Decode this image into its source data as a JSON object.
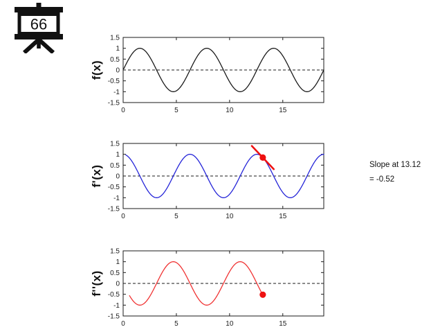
{
  "icon": {
    "label": "66"
  },
  "annotation": {
    "line1": "Slope at 13.12",
    "line2": "= -0.52"
  },
  "style": {
    "background": "#ffffff",
    "axis_color": "#1a1a1a",
    "tick_label_color": "#1a1a1a",
    "zero_line_color": "#1a1a1a",
    "curve_black": "#1a1a1a",
    "curve_blue": "#2424d8",
    "curve_red": "#f03232",
    "marker_red": "#ee1111"
  },
  "chart_data": [
    {
      "type": "line",
      "ylabel": "f(x)",
      "xlabel": "",
      "xlim": [
        0,
        18.85
      ],
      "ylim": [
        -1.5,
        1.5
      ],
      "x_ticks": [
        0,
        5,
        10,
        15
      ],
      "y_ticks": [
        1.5,
        1,
        0.5,
        0,
        -0.5,
        -1,
        -1.5
      ],
      "grid": false,
      "zero_line_dashed": true,
      "series": [
        {
          "name": "f",
          "expression": "sin(x)",
          "fn": "sin",
          "domain": [
            0.05,
            18.85
          ],
          "color": "#1a1a1a",
          "width": 1.3
        }
      ]
    },
    {
      "type": "line",
      "ylabel": "f'(x)",
      "xlabel": "",
      "xlim": [
        0,
        18.85
      ],
      "ylim": [
        -1.5,
        1.5
      ],
      "x_ticks": [
        0,
        5,
        10,
        15
      ],
      "y_ticks": [
        1.5,
        1,
        0.5,
        0,
        -0.5,
        -1,
        -1.5
      ],
      "grid": false,
      "zero_line_dashed": true,
      "series": [
        {
          "name": "f-prime",
          "expression": "cos(x)",
          "fn": "cos",
          "domain": [
            0.25,
            18.85
          ],
          "color": "#2424d8",
          "width": 1.3
        }
      ],
      "tangent": {
        "x": 13.12,
        "y": 0.85,
        "slope": -0.52,
        "half_span": 1.03,
        "color": "#ee1111",
        "width": 2.6
      },
      "marker": {
        "x": 13.12,
        "y": 0.85,
        "r": 4.6,
        "color": "#ee1111"
      }
    },
    {
      "type": "line",
      "ylabel": "f''(x)",
      "xlabel": "",
      "xlim": [
        0,
        18.85
      ],
      "ylim": [
        -1.5,
        1.5
      ],
      "x_ticks": [
        0,
        5,
        10,
        15
      ],
      "y_ticks": [
        1.5,
        1,
        0.5,
        0,
        -0.5,
        -1,
        -1.5
      ],
      "grid": false,
      "zero_line_dashed": true,
      "series": [
        {
          "name": "f-double-prime",
          "expression": "-sin(x)",
          "fn": "negsin",
          "domain": [
            0.6,
            13.12
          ],
          "color": "#f03232",
          "width": 1.3
        }
      ],
      "marker": {
        "x": 13.12,
        "y": -0.52,
        "r": 4.6,
        "color": "#ee1111"
      }
    }
  ]
}
